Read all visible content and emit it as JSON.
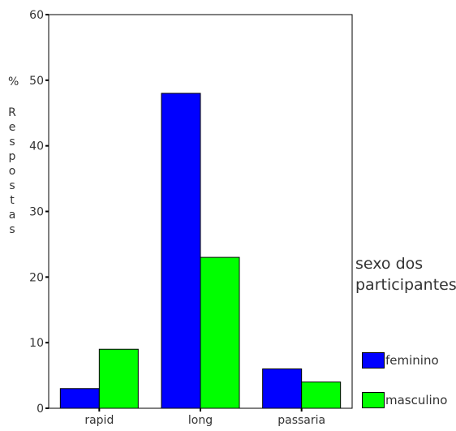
{
  "chart_data": {
    "type": "bar",
    "categories": [
      "rapid",
      "long",
      "passaria"
    ],
    "series": [
      {
        "name": "feminino",
        "values": [
          3,
          48,
          6
        ],
        "color": "#0000ff"
      },
      {
        "name": "masculino",
        "values": [
          9,
          23,
          4
        ],
        "color": "#00ff00"
      }
    ],
    "ylabel": "% Respostas",
    "ylabel_lines": [
      "%",
      "R",
      "e",
      "s",
      "p",
      "o",
      "s",
      "t",
      "a",
      "s"
    ],
    "ylim": [
      0,
      60
    ],
    "yticks": [
      "0",
      "10",
      "20",
      "30",
      "40",
      "50",
      "60"
    ],
    "grid": false,
    "legend": {
      "title_lines": [
        "sexo dos",
        "participantes"
      ],
      "placement": "right"
    }
  }
}
